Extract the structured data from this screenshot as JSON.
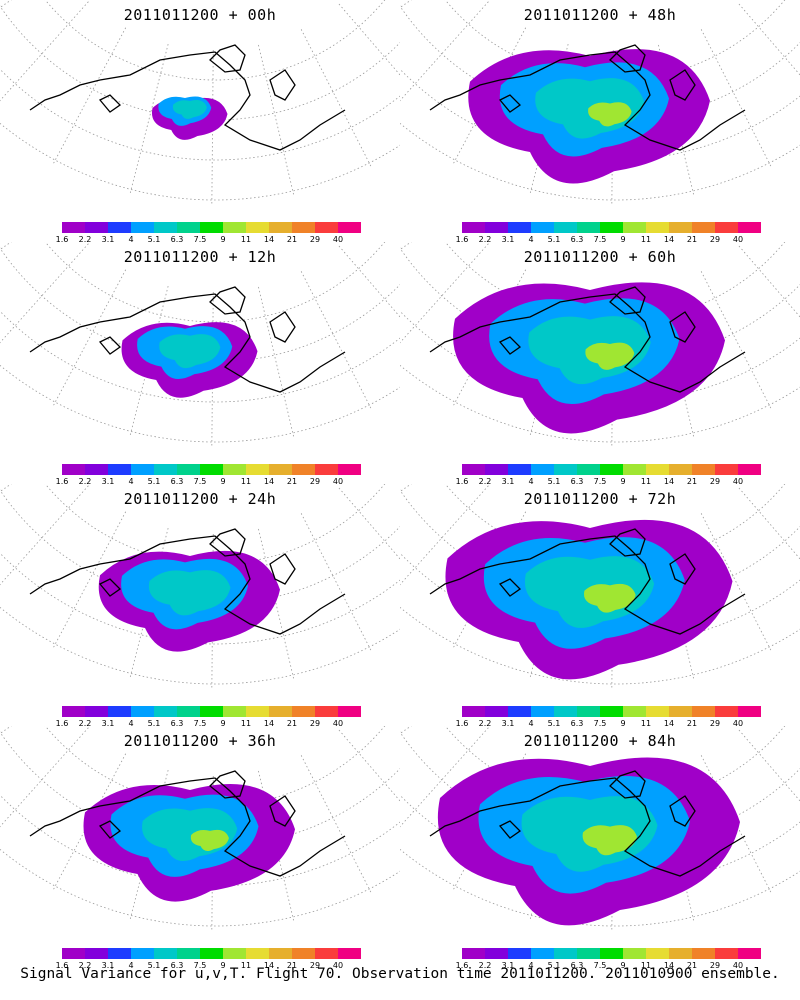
{
  "colorbar": {
    "labels": [
      "1.6",
      "2.2",
      "3.1",
      "4",
      "5.1",
      "6.3",
      "7.5",
      "9",
      "11",
      "14",
      "21",
      "29",
      "40"
    ],
    "colors": [
      "#a000c8",
      "#8200dc",
      "#1e3cff",
      "#00a0ff",
      "#00c8c8",
      "#00d28c",
      "#00dc00",
      "#a0e632",
      "#e6dc32",
      "#e6af2d",
      "#f08228",
      "#fa3c3c",
      "#f00082"
    ]
  },
  "panels": [
    {
      "title": "2011011200 + 00h",
      "col": 0,
      "row": 0,
      "extent": 0.25
    },
    {
      "title": "2011011200 + 48h",
      "col": 1,
      "row": 0,
      "extent": 0.8
    },
    {
      "title": "2011011200 + 12h",
      "col": 0,
      "row": 1,
      "extent": 0.45
    },
    {
      "title": "2011011200 + 60h",
      "col": 1,
      "row": 1,
      "extent": 0.9
    },
    {
      "title": "2011011200 + 24h",
      "col": 0,
      "row": 2,
      "extent": 0.6
    },
    {
      "title": "2011011200 + 72h",
      "col": 1,
      "row": 2,
      "extent": 0.95
    },
    {
      "title": "2011011200 + 36h",
      "col": 0,
      "row": 3,
      "extent": 0.7
    },
    {
      "title": "2011011200 + 84h",
      "col": 1,
      "row": 3,
      "extent": 1.0
    }
  ],
  "footer": "Signal Variance for u,v,T. Flight 70. Observation time 2011011200. 2011010900 ensemble."
}
